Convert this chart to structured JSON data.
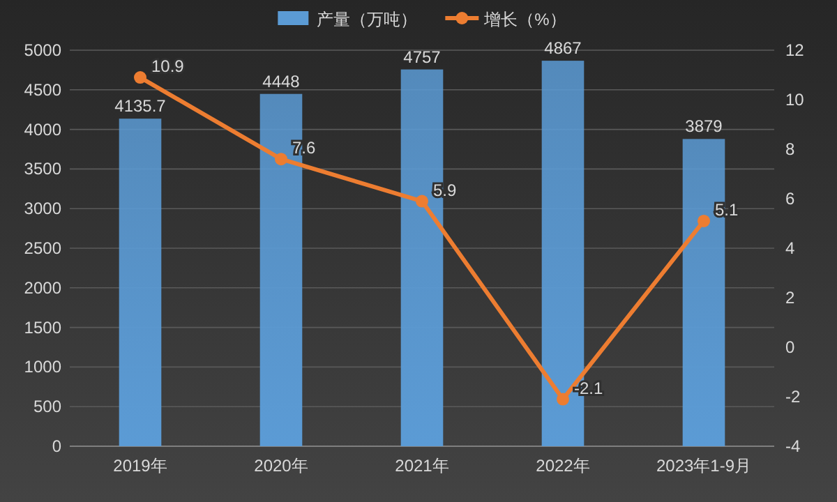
{
  "chart_data": {
    "type": "bar",
    "categories": [
      "2019年",
      "2020年",
      "2021年",
      "2022年",
      "2023年1-9月"
    ],
    "series": [
      {
        "name": "产量（万吨）",
        "color": "#5b9bd5",
        "values": [
          4135.7,
          4448,
          4757,
          4867,
          3879
        ]
      },
      {
        "name": "增长（%）",
        "type": "line",
        "axis": "y2",
        "color": "#ed7d31",
        "values": [
          10.9,
          7.6,
          5.9,
          -2.1,
          5.1
        ]
      }
    ],
    "ylim": [
      0,
      5000
    ],
    "yticks": [
      0,
      500,
      1000,
      1500,
      2000,
      2500,
      3000,
      3500,
      4000,
      4500,
      5000
    ],
    "y2lim": [
      -4,
      12
    ],
    "y2ticks": [
      -4,
      -2,
      0,
      2,
      4,
      6,
      8,
      10,
      12
    ],
    "marker": "circle",
    "grid": "y",
    "legend": "top",
    "data_labels": true
  }
}
